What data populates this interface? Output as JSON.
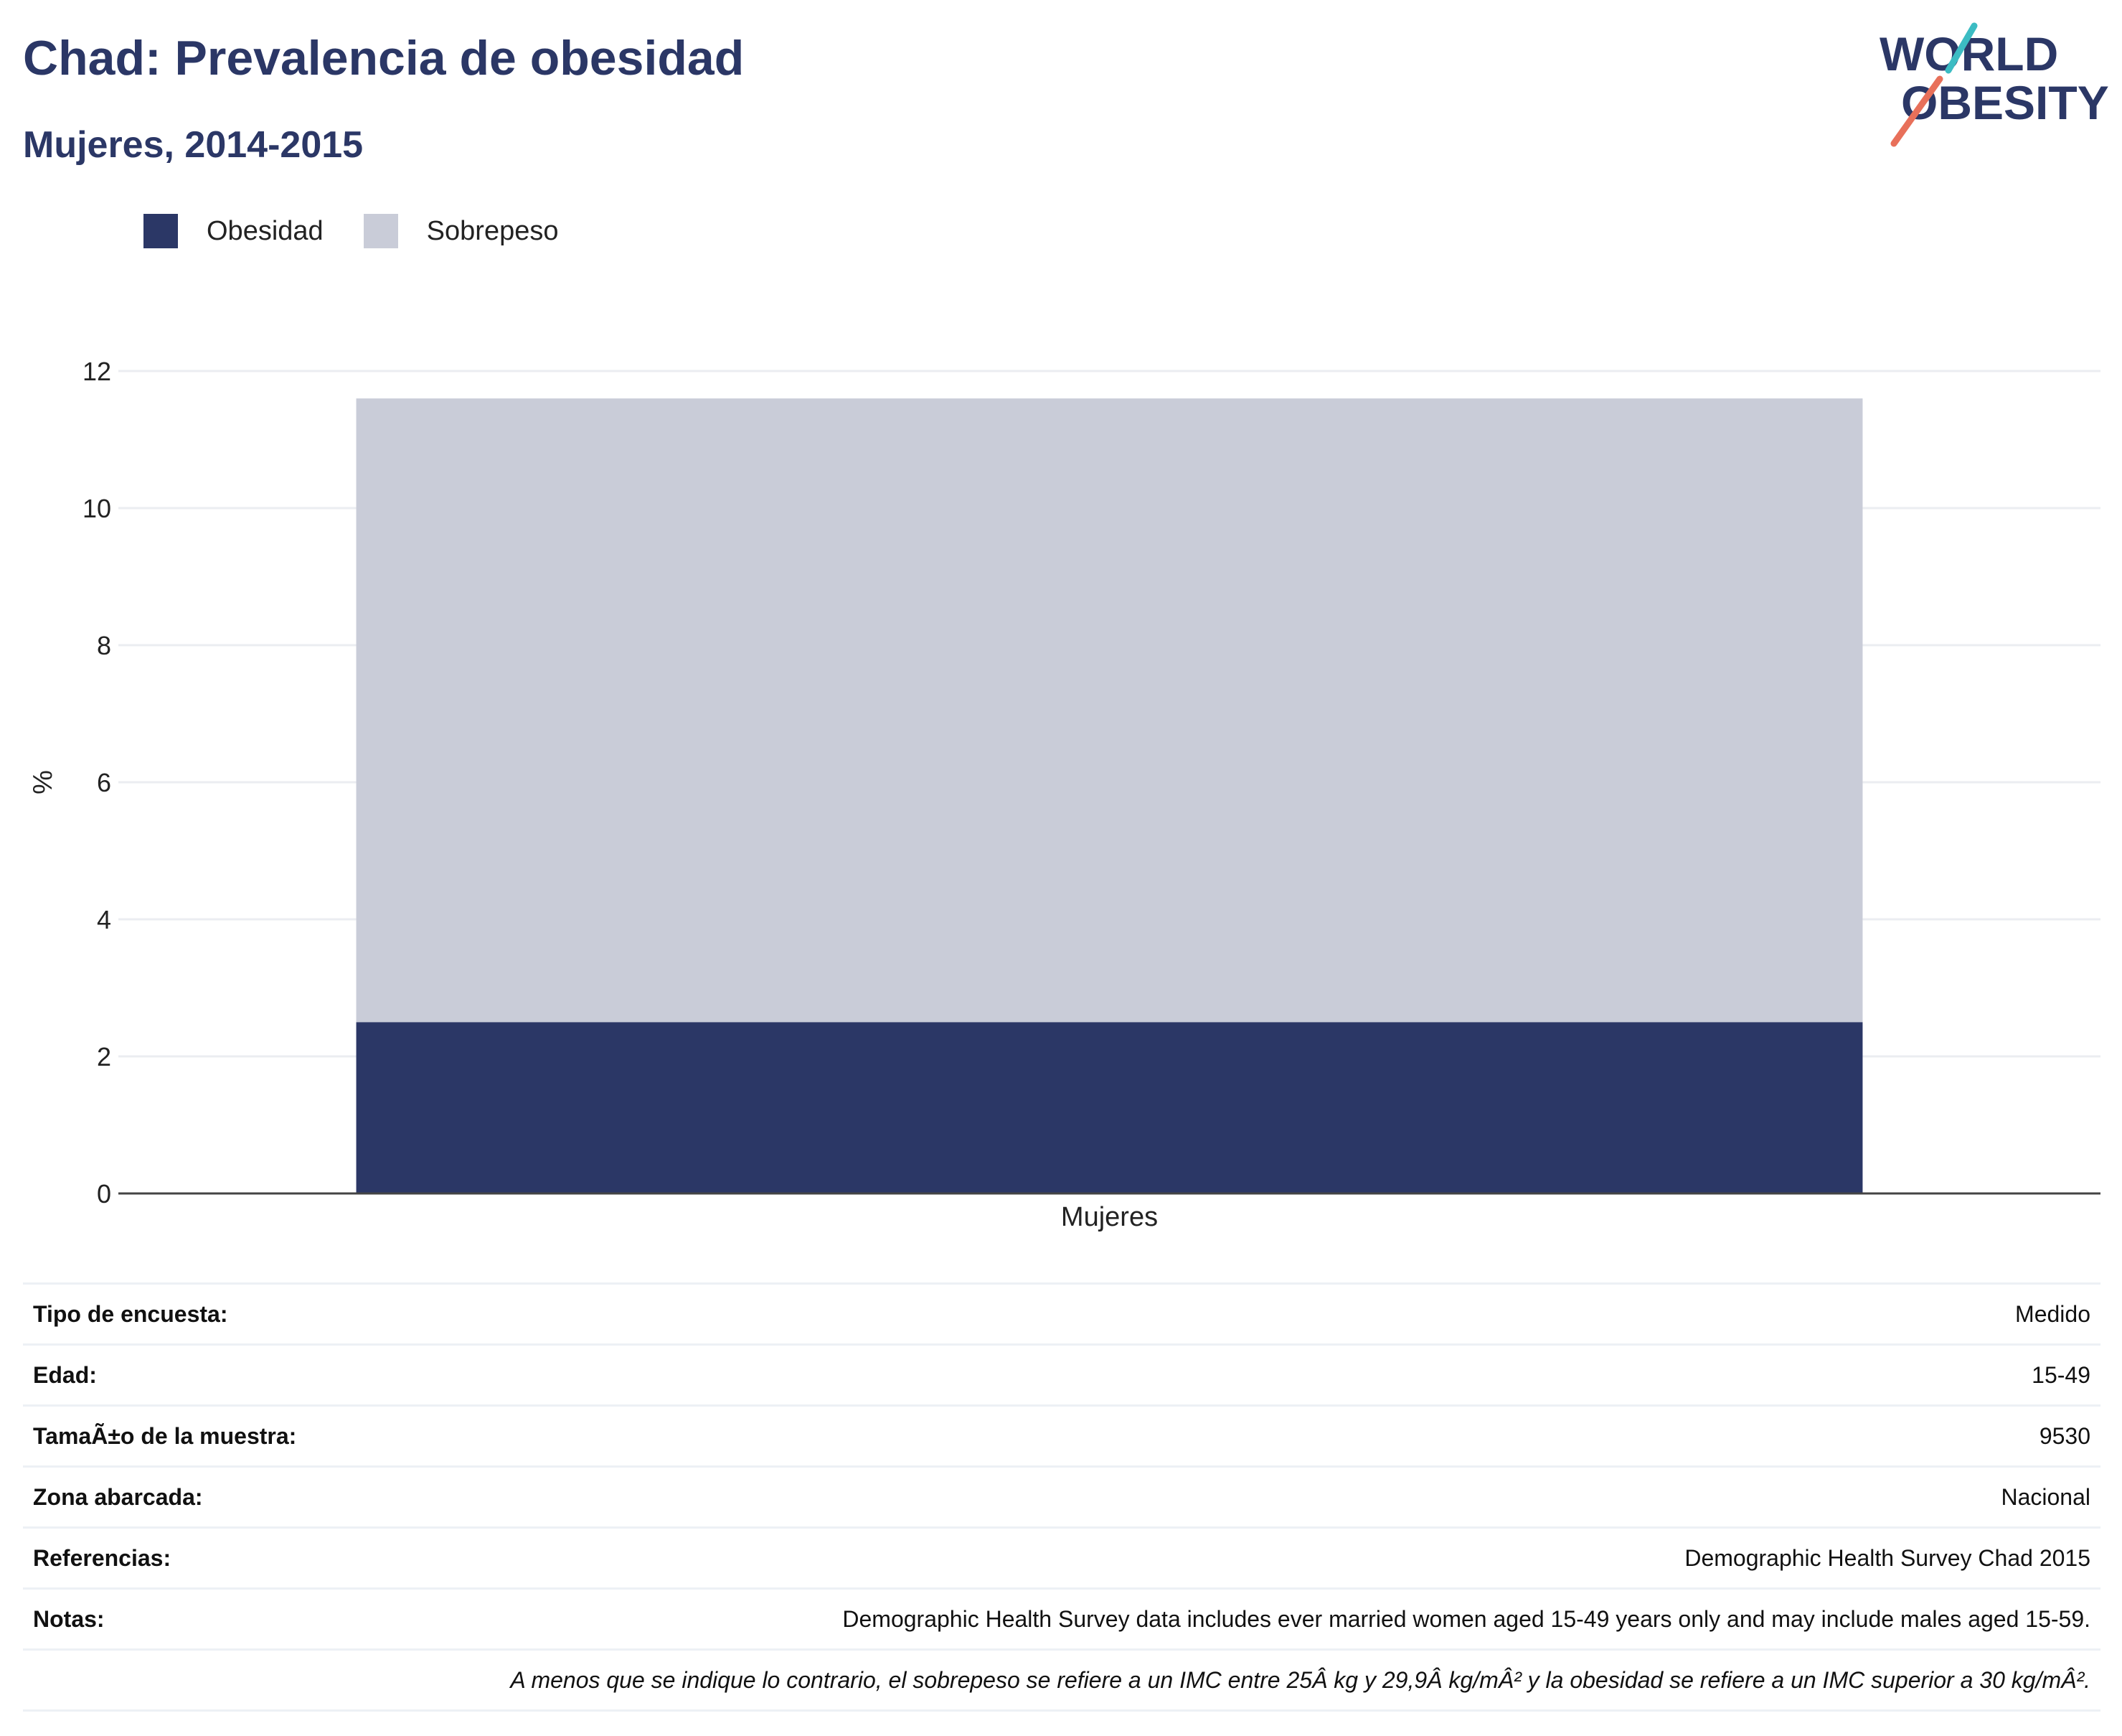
{
  "header": {
    "title": "Chad: Prevalencia de obesidad",
    "subtitle": "Mujeres, 2014-2015"
  },
  "logo": {
    "line1": "WORLD",
    "line2": "OBESITY",
    "accent_teal": "#3cbcc3",
    "accent_coral": "#e8705a",
    "text_color": "#2b3766"
  },
  "legend": {
    "items": [
      {
        "label": "Obesidad",
        "color": "#2b3766"
      },
      {
        "label": "Sobrepeso",
        "color": "#c9ccd8"
      }
    ]
  },
  "chart_data": {
    "type": "bar",
    "stacked": true,
    "categories": [
      "Mujeres"
    ],
    "series": [
      {
        "name": "Obesidad",
        "values": [
          2.5
        ],
        "color": "#2b3766"
      },
      {
        "name": "Sobrepeso",
        "values": [
          9.1
        ],
        "color": "#c9ccd8"
      }
    ],
    "xlabel": "Mujeres",
    "ylabel": "%",
    "ylim": [
      0,
      12
    ],
    "yticks": [
      0,
      2,
      4,
      6,
      8,
      10,
      12
    ],
    "grid": true
  },
  "info": {
    "rows": [
      {
        "key": "Tipo de encuesta:",
        "value": "Medido"
      },
      {
        "key": "Edad:",
        "value": "15-49"
      },
      {
        "key": "TamaÃ±o de la muestra:",
        "value": "9530"
      },
      {
        "key": "Zona abarcada:",
        "value": "Nacional"
      },
      {
        "key": "Referencias:",
        "value": "Demographic Health Survey Chad 2015"
      },
      {
        "key": "Notas:",
        "value": "Demographic Health Survey data includes ever married women aged 15-49 years only and may include males aged 15-59."
      }
    ],
    "footnote": "A menos que se indique lo contrario, el sobrepeso se refiere a un IMC entre 25Â kg y 29,9Â kg/mÂ² y la obesidad se refiere a un IMC superior a 30 kg/mÂ²."
  }
}
